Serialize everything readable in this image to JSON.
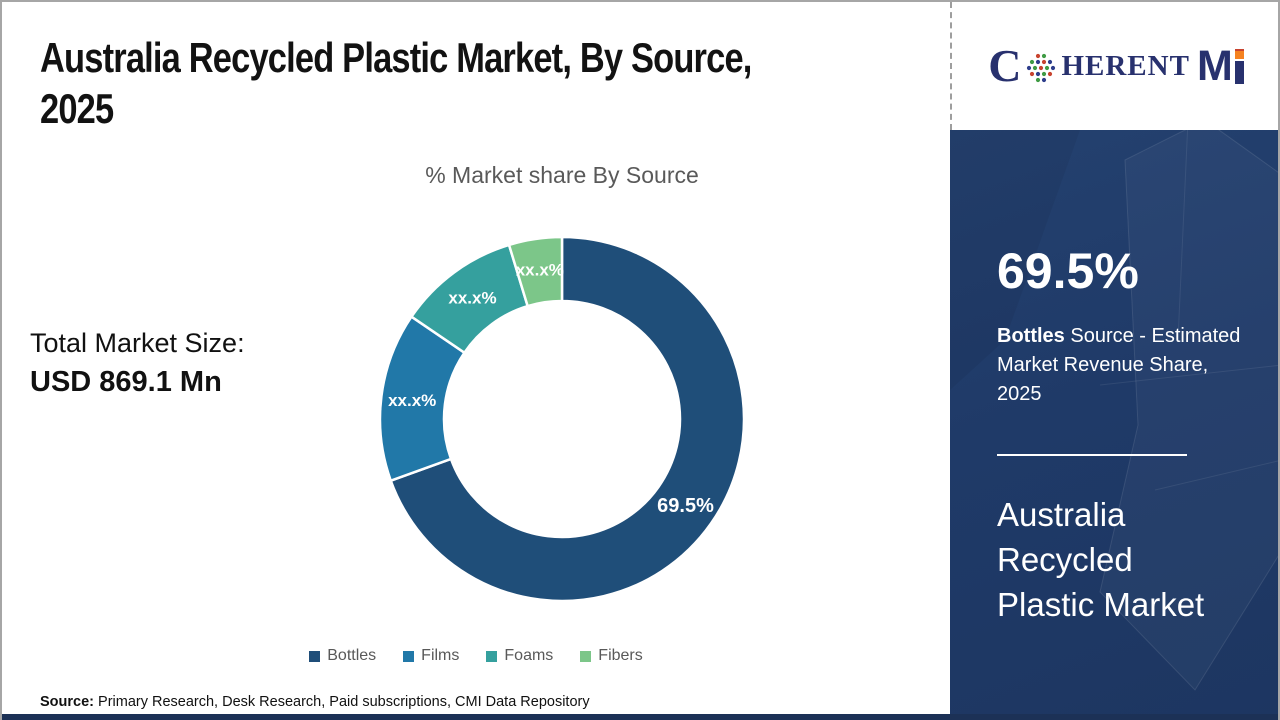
{
  "header": {
    "title_lines": [
      "Australia Recycled Plastic Market, By Source,",
      "2025"
    ]
  },
  "logo": {
    "brand_c": "C",
    "brand_herent": "HERENT",
    "brand_m": "M"
  },
  "chart_data": {
    "type": "pie",
    "variant": "donut",
    "title": "% Market share By Source",
    "categories": [
      "Bottles",
      "Films",
      "Foams",
      "Fibers"
    ],
    "values": [
      69.5,
      15.0,
      10.8,
      4.7
    ],
    "display_labels": [
      "69.5%",
      "xx.x%",
      "xx.x%",
      "xx.x%"
    ],
    "colors": [
      "#1F4E79",
      "#2178A8",
      "#35A09E",
      "#7CC689"
    ],
    "start_angle_deg": 0,
    "direction": "clockwise",
    "inner_radius_ratio": 0.65,
    "legend_position": "bottom",
    "note": "Only the Bottles share (69.5%) is labeled in the chart; Films, Foams and Fibers are masked as xx.x% — their numeric values are estimated from arc angles."
  },
  "left_stats": {
    "label": "Total Market Size:",
    "value": "USD 869.1 Mn"
  },
  "panel": {
    "stat_value": "69.5%",
    "desc_bold": "Bottles",
    "desc_rest": " Source - Estimated Market Revenue Share, 2025",
    "title_lines": [
      "Australia",
      "Recycled",
      "Plastic Market"
    ]
  },
  "footer": {
    "label": "Source:",
    "text": " Primary Research, Desk Research, Paid subscriptions, CMI Data Repository"
  }
}
